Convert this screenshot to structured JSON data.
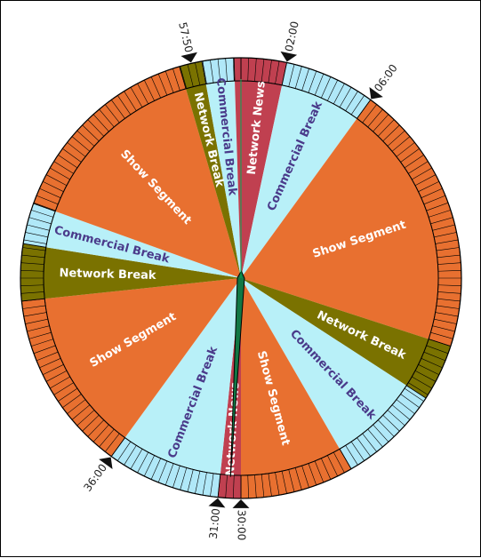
{
  "colors": {
    "show": "#E87030",
    "show_ring": "#E87030",
    "commercial": "#B8F0F8",
    "commercial_ring": "#B0E8F8",
    "network_break": "#7A7200",
    "network_news": "#C04050",
    "label_light": "#FFFFFF",
    "label_dark": "#4A3A8A",
    "hand": "#117744"
  },
  "segments": [
    {
      "id": "news-top",
      "type": "network_news",
      "label": "Network News",
      "start": 0.0,
      "end": 2.0
    },
    {
      "id": "comm-1",
      "type": "commercial",
      "label": "Commercial Break",
      "start": 2.0,
      "end": 6.0
    },
    {
      "id": "show-1",
      "type": "show",
      "label": "Show Segment",
      "start": 6.0,
      "end": 18.0
    },
    {
      "id": "netbreak-1",
      "type": "network_break",
      "label": "Network Break",
      "start": 18.0,
      "end": 20.5
    },
    {
      "id": "comm-2",
      "type": "commercial",
      "label": "Commercial Break",
      "start": 20.5,
      "end": 25.0
    },
    {
      "id": "show-2",
      "type": "show",
      "label": "Show Segment",
      "start": 25.0,
      "end": 30.0
    },
    {
      "id": "news-bottom",
      "type": "network_news",
      "label": "Network News",
      "start": 30.0,
      "end": 31.0
    },
    {
      "id": "comm-3",
      "type": "commercial",
      "label": "Commercial Break",
      "start": 31.0,
      "end": 36.0
    },
    {
      "id": "show-3",
      "type": "show",
      "label": "Show Segment",
      "start": 36.0,
      "end": 44.0
    },
    {
      "id": "netbreak-2",
      "type": "network_break",
      "label": "Network Break",
      "start": 44.0,
      "end": 46.5
    },
    {
      "id": "comm-4",
      "type": "commercial",
      "label": "Commercial Break",
      "start": 46.5,
      "end": 48.3
    },
    {
      "id": "show-4",
      "type": "show",
      "label": "Show Segment",
      "start": 48.3,
      "end": 57.3
    },
    {
      "id": "netbreak-3",
      "type": "network_break",
      "label": "Network Break",
      "start": 57.3,
      "end": 58.3
    },
    {
      "id": "comm-5",
      "type": "commercial",
      "label": "Commercial Break",
      "start": 58.3,
      "end": 59.7
    },
    {
      "id": "news-end",
      "type": "network_news",
      "label": "",
      "start": 59.7,
      "end": 60.0
    }
  ],
  "time_markers": [
    {
      "label": "02:00",
      "minute": 2.0
    },
    {
      "label": "06:00",
      "minute": 6.0
    },
    {
      "label": "30:00",
      "minute": 30.0
    },
    {
      "label": "31:00",
      "minute": 31.0
    },
    {
      "label": "36:00",
      "minute": 36.0
    },
    {
      "label": "57:50",
      "minute": 57.83
    }
  ],
  "hand_minute": 30.5
}
